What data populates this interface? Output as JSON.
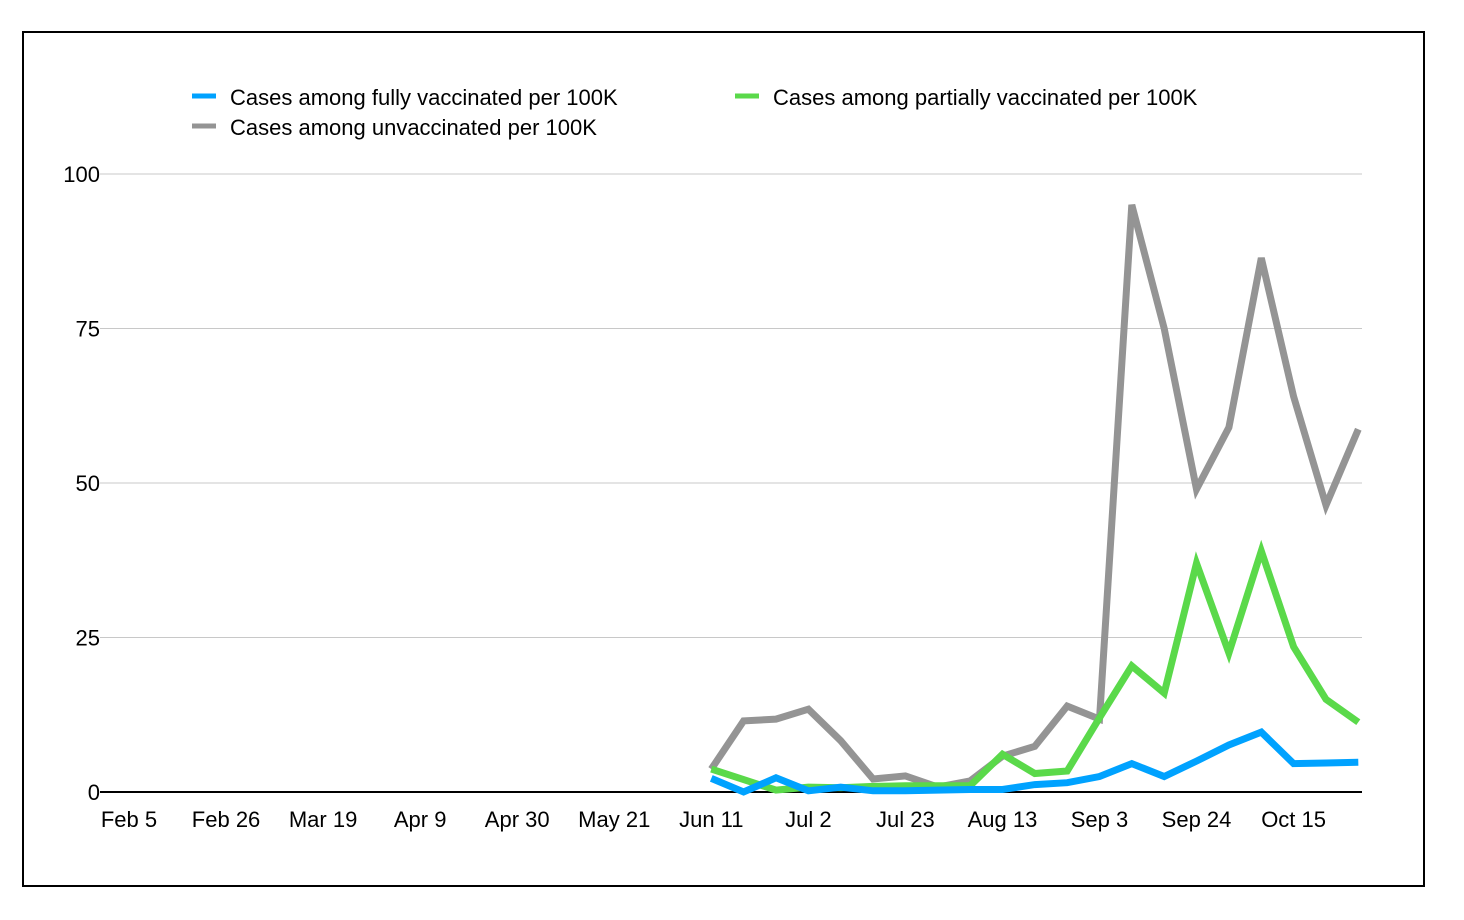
{
  "chart_data": {
    "type": "line",
    "title": "",
    "xlabel": "",
    "ylabel": "",
    "ylim": [
      0,
      100
    ],
    "yticks": [
      0,
      25,
      50,
      75,
      100
    ],
    "x_tick_labels": [
      "Feb 5",
      "Feb 26",
      "Mar 19",
      "Apr 9",
      "Apr 30",
      "May 21",
      "Jun 11",
      "Jul 2",
      "Jul 23",
      "Aug 13",
      "Sep 3",
      "Sep 24",
      "Oct 15"
    ],
    "x": [
      "Jun 11",
      "Jun 18",
      "Jun 25",
      "Jul 2",
      "Jul 9",
      "Jul 16",
      "Jul 23",
      "Jul 30",
      "Aug 6",
      "Aug 13",
      "Aug 20",
      "Aug 27",
      "Sep 3",
      "Sep 10",
      "Sep 17",
      "Sep 24",
      "Oct 1",
      "Oct 8",
      "Oct 15",
      "Oct 22",
      "Oct 29"
    ],
    "legend_position": "top",
    "grid": true,
    "series": [
      {
        "name": "Cases among fully vaccinated per 100K",
        "color": "#00a2ff",
        "values": [
          2.2,
          0,
          2.3,
          0.2,
          0.8,
          0.2,
          0.2,
          0.3,
          0.4,
          0.4,
          1.2,
          1.5,
          2.5,
          4.6,
          2.5,
          5,
          7.6,
          9.7,
          4.6,
          4.7,
          4.8
        ]
      },
      {
        "name": "Cases among partially vaccinated per 100K",
        "color": "#5ad94a",
        "values": [
          3.7,
          2,
          0.3,
          0.8,
          0.7,
          0.9,
          1,
          1,
          1,
          6.1,
          3,
          3.4,
          12,
          20.4,
          16,
          37,
          22.5,
          39,
          23.5,
          15,
          11.3
        ]
      },
      {
        "name": "Cases among unvaccinated per 100K",
        "color": "#949494",
        "values": [
          3.7,
          11.5,
          11.8,
          13.4,
          8.3,
          2.1,
          2.6,
          0.8,
          1.8,
          5.8,
          7.4,
          13.9,
          11.8,
          95,
          75,
          49,
          59,
          86.4,
          64,
          46.4,
          58.7
        ]
      }
    ]
  }
}
